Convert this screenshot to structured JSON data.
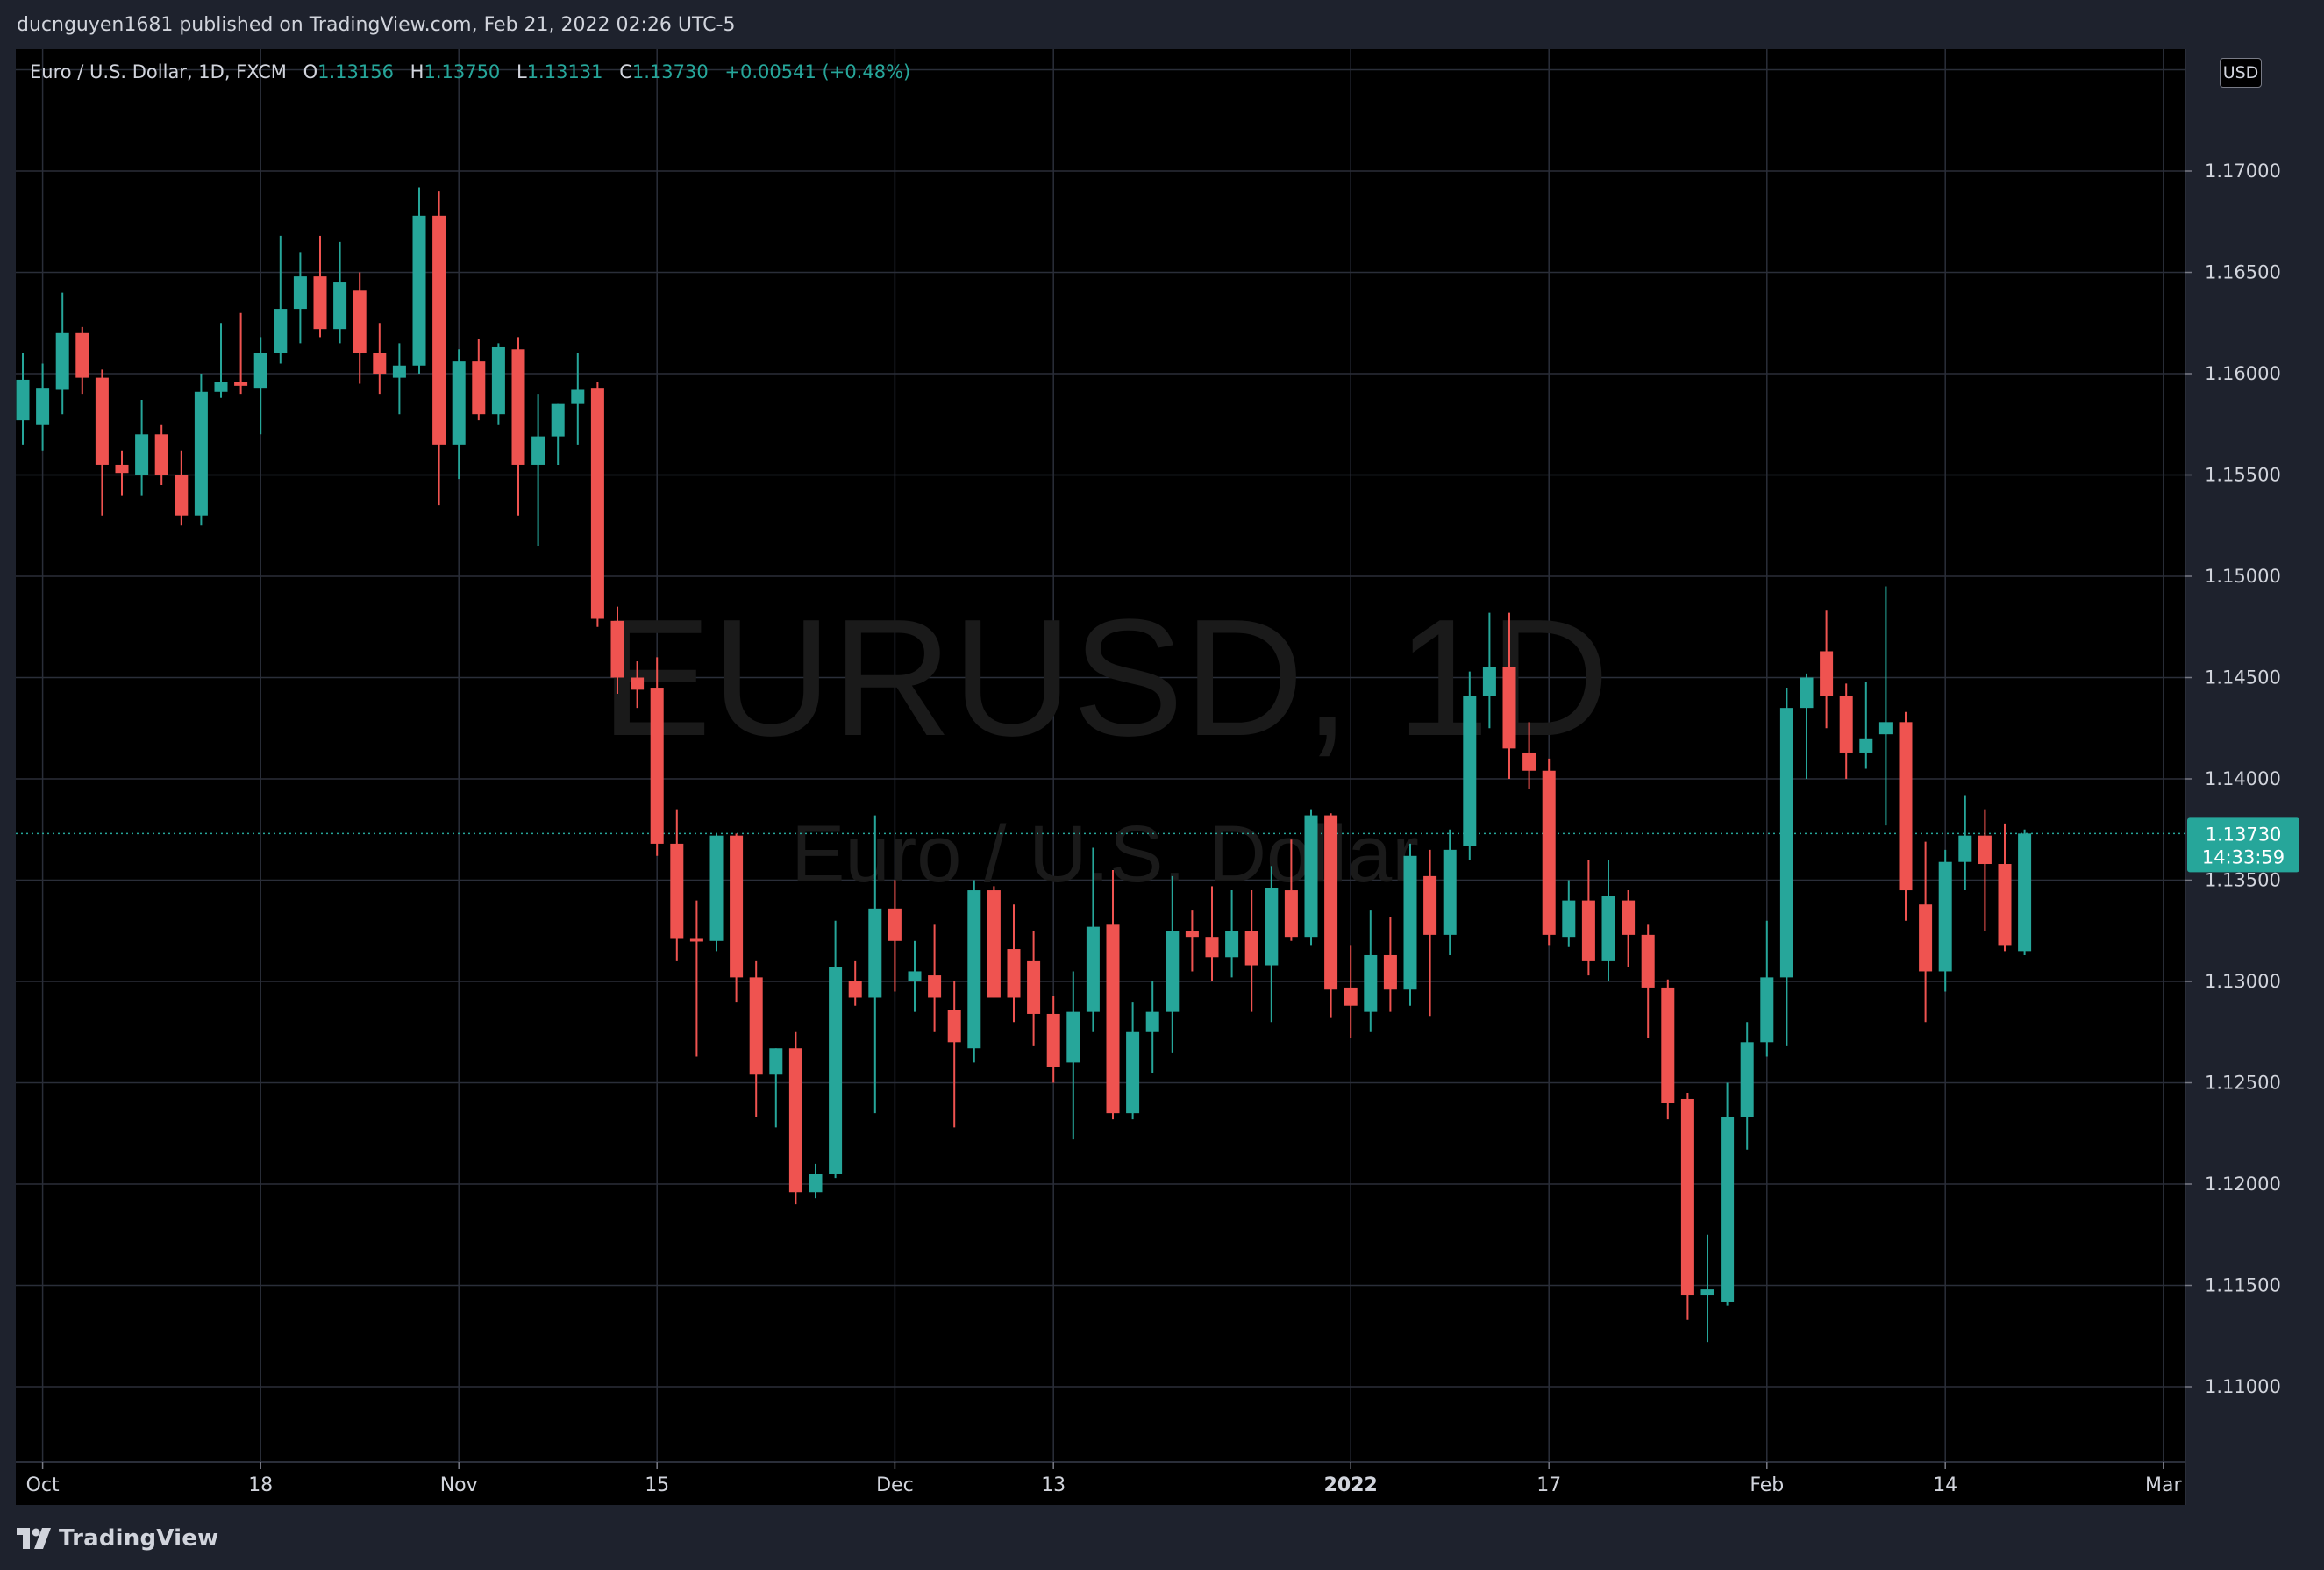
{
  "header": {
    "published_text": "ducnguyen1681 published on TradingView.com, Feb 21, 2022 02:26 UTC-5"
  },
  "legend": {
    "symbol_desc": "Euro / U.S. Dollar, 1D, FXCM",
    "o_label": "O",
    "o_value": "1.13156",
    "h_label": "H",
    "h_value": "1.13750",
    "l_label": "L",
    "l_value": "1.13131",
    "c_label": "C",
    "c_value": "1.13730",
    "change": "+0.00541 (+0.48%)"
  },
  "currency_button": "USD",
  "watermark": {
    "symbol": "EURUSD, 1D",
    "description": "Euro / U.S. Dollar"
  },
  "last_price_label": {
    "price": "1.13730",
    "countdown": "14:33:59"
  },
  "footer": {
    "brand": "TradingView"
  },
  "colors": {
    "up": "#26a69a",
    "down": "#ef5350",
    "background": "#000000",
    "grid": "#2a2e39",
    "text": "#d1d4dc"
  },
  "chart_data": {
    "type": "candlestick",
    "y_axis": {
      "ticks": [
        "1.11000",
        "1.11500",
        "1.12000",
        "1.12500",
        "1.13000",
        "1.13500",
        "1.14000",
        "1.14500",
        "1.15000",
        "1.15500",
        "1.16000",
        "1.16500",
        "1.17000"
      ],
      "range": [
        1.1075,
        1.1775
      ]
    },
    "x_axis": {
      "labels": [
        {
          "text": "Oct",
          "bar": 1
        },
        {
          "text": "18",
          "bar": 12
        },
        {
          "text": "Nov",
          "bar": 22
        },
        {
          "text": "15",
          "bar": 32
        },
        {
          "text": "Dec",
          "bar": 44
        },
        {
          "text": "13",
          "bar": 52
        },
        {
          "text": "2022",
          "bar": 67,
          "bold": true
        },
        {
          "text": "17",
          "bar": 77
        },
        {
          "text": "Feb",
          "bar": 88
        },
        {
          "text": "14",
          "bar": 97
        },
        {
          "text": "Mar",
          "bar": 108
        }
      ]
    },
    "ohlc": [
      [
        1.1577,
        1.161,
        1.1565,
        1.1597
      ],
      [
        1.1575,
        1.1605,
        1.1562,
        1.1593
      ],
      [
        1.1592,
        1.164,
        1.158,
        1.162
      ],
      [
        1.162,
        1.1623,
        1.159,
        1.1598
      ],
      [
        1.1598,
        1.1602,
        1.153,
        1.1555
      ],
      [
        1.1555,
        1.1562,
        1.154,
        1.1551
      ],
      [
        1.155,
        1.1587,
        1.154,
        1.157
      ],
      [
        1.157,
        1.1575,
        1.1545,
        1.155
      ],
      [
        1.155,
        1.1562,
        1.1525,
        1.153
      ],
      [
        1.153,
        1.16,
        1.1525,
        1.1591
      ],
      [
        1.1591,
        1.1625,
        1.1588,
        1.1596
      ],
      [
        1.1596,
        1.163,
        1.159,
        1.1594
      ],
      [
        1.1593,
        1.1618,
        1.157,
        1.161
      ],
      [
        1.161,
        1.1668,
        1.1605,
        1.1632
      ],
      [
        1.1632,
        1.166,
        1.1615,
        1.1648
      ],
      [
        1.1648,
        1.1668,
        1.1618,
        1.1622
      ],
      [
        1.1622,
        1.1665,
        1.1615,
        1.1645
      ],
      [
        1.1641,
        1.165,
        1.1595,
        1.161
      ],
      [
        1.161,
        1.1625,
        1.159,
        1.16
      ],
      [
        1.1598,
        1.1615,
        1.158,
        1.1604
      ],
      [
        1.1604,
        1.1692,
        1.16,
        1.1678
      ],
      [
        1.1678,
        1.169,
        1.1535,
        1.1565
      ],
      [
        1.1565,
        1.1612,
        1.1548,
        1.1606
      ],
      [
        1.1606,
        1.1617,
        1.1577,
        1.158
      ],
      [
        1.158,
        1.1615,
        1.1575,
        1.1613
      ],
      [
        1.1612,
        1.1618,
        1.153,
        1.1555
      ],
      [
        1.1555,
        1.159,
        1.1515,
        1.1569
      ],
      [
        1.1569,
        1.1585,
        1.1555,
        1.1585
      ],
      [
        1.1585,
        1.161,
        1.1565,
        1.1592
      ],
      [
        1.1593,
        1.1596,
        1.1475,
        1.1479
      ],
      [
        1.1478,
        1.1485,
        1.1442,
        1.145
      ],
      [
        1.145,
        1.1458,
        1.1435,
        1.1444
      ],
      [
        1.1445,
        1.146,
        1.1362,
        1.1368
      ],
      [
        1.1368,
        1.1385,
        1.131,
        1.1321
      ],
      [
        1.1321,
        1.134,
        1.1263,
        1.132
      ],
      [
        1.132,
        1.1373,
        1.1315,
        1.1372
      ],
      [
        1.1372,
        1.1373,
        1.129,
        1.1302
      ],
      [
        1.1302,
        1.131,
        1.1233,
        1.1254
      ],
      [
        1.1254,
        1.1267,
        1.1228,
        1.1267
      ],
      [
        1.1267,
        1.1275,
        1.119,
        1.1196
      ],
      [
        1.1196,
        1.121,
        1.1193,
        1.1205
      ],
      [
        1.1205,
        1.133,
        1.1203,
        1.1307
      ],
      [
        1.13,
        1.131,
        1.1288,
        1.1292
      ],
      [
        1.1292,
        1.1382,
        1.1235,
        1.1336
      ],
      [
        1.1336,
        1.135,
        1.1295,
        1.132
      ],
      [
        1.13,
        1.132,
        1.1285,
        1.1305
      ],
      [
        1.1303,
        1.1328,
        1.1275,
        1.1292
      ],
      [
        1.1286,
        1.13,
        1.1228,
        1.127
      ],
      [
        1.1267,
        1.135,
        1.126,
        1.1345
      ],
      [
        1.1345,
        1.1347,
        1.1292,
        1.1292
      ],
      [
        1.1316,
        1.1338,
        1.128,
        1.1292
      ],
      [
        1.131,
        1.1325,
        1.1268,
        1.1284
      ],
      [
        1.1284,
        1.1293,
        1.125,
        1.1258
      ],
      [
        1.126,
        1.1305,
        1.1222,
        1.1285
      ],
      [
        1.1285,
        1.1366,
        1.1275,
        1.1327
      ],
      [
        1.1328,
        1.1355,
        1.1232,
        1.1235
      ],
      [
        1.1235,
        1.129,
        1.1232,
        1.1275
      ],
      [
        1.1275,
        1.13,
        1.1255,
        1.1285
      ],
      [
        1.1285,
        1.1352,
        1.1265,
        1.1325
      ],
      [
        1.1325,
        1.1335,
        1.1305,
        1.1322
      ],
      [
        1.1322,
        1.1347,
        1.13,
        1.1312
      ],
      [
        1.1312,
        1.1345,
        1.1302,
        1.1325
      ],
      [
        1.1325,
        1.1345,
        1.1285,
        1.1308
      ],
      [
        1.1308,
        1.1357,
        1.128,
        1.1346
      ],
      [
        1.1345,
        1.137,
        1.132,
        1.1322
      ],
      [
        1.1322,
        1.1385,
        1.1318,
        1.1382
      ],
      [
        1.1382,
        1.1383,
        1.1282,
        1.1296
      ],
      [
        1.1297,
        1.1318,
        1.1272,
        1.1288
      ],
      [
        1.1285,
        1.1335,
        1.1275,
        1.1313
      ],
      [
        1.1313,
        1.1332,
        1.1285,
        1.1296
      ],
      [
        1.1296,
        1.1368,
        1.1288,
        1.1362
      ],
      [
        1.1352,
        1.1365,
        1.1283,
        1.1323
      ],
      [
        1.1323,
        1.1375,
        1.1313,
        1.1365
      ],
      [
        1.1367,
        1.1453,
        1.136,
        1.1441
      ],
      [
        1.1441,
        1.1482,
        1.1425,
        1.1455
      ],
      [
        1.1455,
        1.1482,
        1.14,
        1.1415
      ],
      [
        1.1413,
        1.1428,
        1.1395,
        1.1404
      ],
      [
        1.1404,
        1.141,
        1.1318,
        1.1323
      ],
      [
        1.1322,
        1.135,
        1.1317,
        1.134
      ],
      [
        1.134,
        1.136,
        1.1303,
        1.131
      ],
      [
        1.131,
        1.136,
        1.13,
        1.1342
      ],
      [
        1.134,
        1.1345,
        1.1307,
        1.1323
      ],
      [
        1.1323,
        1.1328,
        1.1272,
        1.1297
      ],
      [
        1.1297,
        1.1301,
        1.1232,
        1.124
      ],
      [
        1.1242,
        1.1245,
        1.1133,
        1.1145
      ],
      [
        1.1145,
        1.1175,
        1.1122,
        1.1148
      ],
      [
        1.1142,
        1.125,
        1.114,
        1.1233
      ],
      [
        1.1233,
        1.128,
        1.1217,
        1.127
      ],
      [
        1.127,
        1.133,
        1.1263,
        1.1302
      ],
      [
        1.1302,
        1.1445,
        1.1268,
        1.1435
      ],
      [
        1.1435,
        1.1452,
        1.14,
        1.145
      ],
      [
        1.1463,
        1.1483,
        1.1425,
        1.1441
      ],
      [
        1.1441,
        1.1447,
        1.14,
        1.1413
      ],
      [
        1.1413,
        1.1448,
        1.1405,
        1.142
      ],
      [
        1.1422,
        1.1495,
        1.1377,
        1.1428
      ],
      [
        1.1428,
        1.1433,
        1.133,
        1.1345
      ],
      [
        1.1338,
        1.1369,
        1.128,
        1.1305
      ],
      [
        1.1305,
        1.1365,
        1.1295,
        1.1359
      ],
      [
        1.1359,
        1.1392,
        1.1345,
        1.1372
      ],
      [
        1.1372,
        1.1385,
        1.1325,
        1.1358
      ],
      [
        1.1358,
        1.1378,
        1.1315,
        1.1318
      ],
      [
        1.1315,
        1.1375,
        1.1313,
        1.1373
      ]
    ]
  }
}
